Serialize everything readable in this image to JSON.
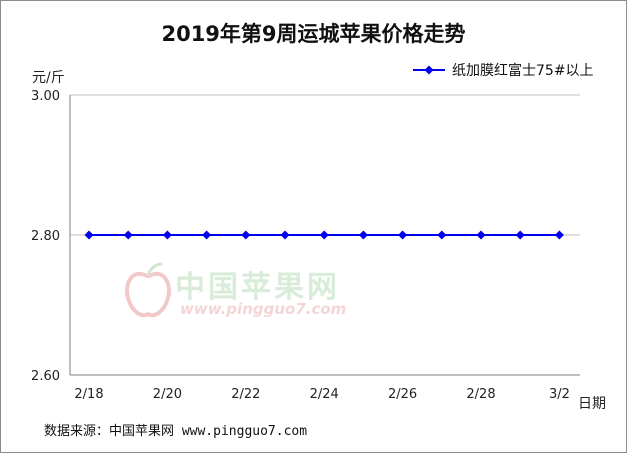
{
  "watermark": {
    "brand": "中国苹果网",
    "url": "www.pingguo7.com"
  },
  "footer": {
    "source": "数据来源：中国苹果网 www.pingguo7.com"
  },
  "colors": {
    "series": "#0000ee",
    "axis": "#7f7f7f",
    "grid": "#bfbfbf"
  },
  "chart_data": {
    "type": "line",
    "title": "2019年第9周运城苹果价格走势",
    "ylabel": "元/斤",
    "xlabel": "日期",
    "ylim": [
      2.6,
      3.0
    ],
    "yticks": [
      "3.00",
      "2.80",
      "2.60"
    ],
    "x": [
      "2/18",
      "2/19",
      "2/20",
      "2/21",
      "2/22",
      "2/23",
      "2/24",
      "2/25",
      "2/26",
      "2/27",
      "2/28",
      "3/1",
      "3/2"
    ],
    "xtick_labels": [
      "2/18",
      "2/20",
      "2/22",
      "2/24",
      "2/26",
      "2/28",
      "3/2"
    ],
    "series": [
      {
        "name": "纸加膜红富士75#以上",
        "values": [
          2.8,
          2.8,
          2.8,
          2.8,
          2.8,
          2.8,
          2.8,
          2.8,
          2.8,
          2.8,
          2.8,
          2.8,
          2.8
        ]
      }
    ],
    "grid": true,
    "legend": "top-right"
  }
}
